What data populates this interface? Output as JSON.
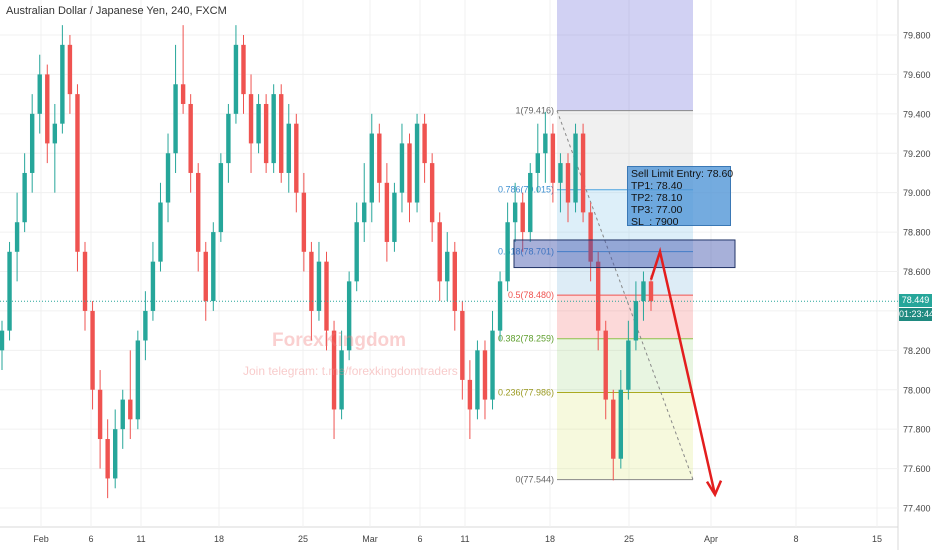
{
  "header": {
    "title": "Australian Dollar / Japanese Yen, 240, FXCM"
  },
  "watermark": {
    "brand": "ForexKingdom",
    "subtitle": "Join telegram: t.me/forexkingdomtraders"
  },
  "annotation": {
    "lines": [
      "Sell Limit Entry: 78.60",
      "TP1: 78.40",
      "TP2: 78.10",
      "TP3: 77.00",
      "SL  : 7900"
    ]
  },
  "price_tag": {
    "price": "78.449",
    "countdown": "01:23:44"
  },
  "colors": {
    "up": "#26a69a",
    "down": "#ef5350",
    "arrow": "#e31e1e",
    "current_line": "#26a69a"
  },
  "chart_data": {
    "type": "candlestick",
    "title": "Australian Dollar / Japanese Yen, 240, FXCM",
    "ylim": [
      77.3,
      80.0
    ],
    "y_ticks": [
      77.4,
      77.6,
      77.8,
      78.0,
      78.2,
      78.4,
      78.6,
      78.8,
      79.0,
      79.2,
      79.4,
      79.6,
      79.8
    ],
    "y_tick_labels": [
      "77.400",
      "77.600",
      "77.800",
      "78.000",
      "78.200",
      "78.400",
      "78.600",
      "78.800",
      "79.000",
      "79.200",
      "79.400",
      "79.600",
      "79.800"
    ],
    "x_labels": [
      "Feb",
      "6",
      "11",
      "18",
      "25",
      "Mar",
      "6",
      "11",
      "18",
      "25",
      "Apr",
      "8",
      "15"
    ],
    "current_price": 78.449,
    "fibonacci": [
      {
        "level": "1",
        "price": 79.416,
        "label": "1(79.416)"
      },
      {
        "level": "0.786",
        "price": 79.015,
        "label": "0.786(79.015)"
      },
      {
        "level": "0.618",
        "price": 78.701,
        "label": "0.618(78.701)"
      },
      {
        "level": "0.5",
        "price": 78.48,
        "label": "0.5(78.480)"
      },
      {
        "level": "0.382",
        "price": 78.259,
        "label": "0.382(78.259)"
      },
      {
        "level": "0.236",
        "price": 77.986,
        "label": "0.236(77.986)"
      },
      {
        "level": "0",
        "price": 77.544,
        "label": "0(77.544)"
      }
    ],
    "sell_zone": {
      "from": 78.62,
      "to": 78.76
    },
    "projection": {
      "from_price": 78.701,
      "to_price": 77.544
    },
    "candles": [
      {
        "o": 78.2,
        "h": 78.35,
        "l": 78.1,
        "c": 78.3
      },
      {
        "o": 78.3,
        "h": 78.75,
        "l": 78.25,
        "c": 78.7
      },
      {
        "o": 78.7,
        "h": 79.0,
        "l": 78.55,
        "c": 78.85
      },
      {
        "o": 78.85,
        "h": 79.2,
        "l": 78.8,
        "c": 79.1
      },
      {
        "o": 79.1,
        "h": 79.5,
        "l": 79.0,
        "c": 79.4
      },
      {
        "o": 79.4,
        "h": 79.7,
        "l": 79.3,
        "c": 79.6
      },
      {
        "o": 79.6,
        "h": 79.65,
        "l": 79.15,
        "c": 79.25
      },
      {
        "o": 79.25,
        "h": 79.45,
        "l": 79.0,
        "c": 79.35
      },
      {
        "o": 79.35,
        "h": 79.85,
        "l": 79.3,
        "c": 79.75
      },
      {
        "o": 79.75,
        "h": 79.8,
        "l": 79.4,
        "c": 79.5
      },
      {
        "o": 79.5,
        "h": 79.55,
        "l": 78.6,
        "c": 78.7
      },
      {
        "o": 78.7,
        "h": 78.75,
        "l": 78.3,
        "c": 78.4
      },
      {
        "o": 78.4,
        "h": 78.45,
        "l": 77.9,
        "c": 78.0
      },
      {
        "o": 78.0,
        "h": 78.1,
        "l": 77.6,
        "c": 77.75
      },
      {
        "o": 77.75,
        "h": 77.85,
        "l": 77.45,
        "c": 77.55
      },
      {
        "o": 77.55,
        "h": 77.9,
        "l": 77.5,
        "c": 77.8
      },
      {
        "o": 77.8,
        "h": 78.0,
        "l": 77.7,
        "c": 77.95
      },
      {
        "o": 77.95,
        "h": 78.2,
        "l": 77.75,
        "c": 77.85
      },
      {
        "o": 77.85,
        "h": 78.3,
        "l": 77.8,
        "c": 78.25
      },
      {
        "o": 78.25,
        "h": 78.5,
        "l": 78.15,
        "c": 78.4
      },
      {
        "o": 78.4,
        "h": 78.75,
        "l": 78.35,
        "c": 78.65
      },
      {
        "o": 78.65,
        "h": 79.05,
        "l": 78.6,
        "c": 78.95
      },
      {
        "o": 78.95,
        "h": 79.3,
        "l": 78.85,
        "c": 79.2
      },
      {
        "o": 79.2,
        "h": 79.75,
        "l": 79.1,
        "c": 79.55
      },
      {
        "o": 79.55,
        "h": 79.85,
        "l": 79.4,
        "c": 79.45
      },
      {
        "o": 79.45,
        "h": 79.5,
        "l": 79.0,
        "c": 79.1
      },
      {
        "o": 79.1,
        "h": 79.15,
        "l": 78.6,
        "c": 78.7
      },
      {
        "o": 78.7,
        "h": 78.75,
        "l": 78.35,
        "c": 78.45
      },
      {
        "o": 78.45,
        "h": 78.85,
        "l": 78.4,
        "c": 78.8
      },
      {
        "o": 78.8,
        "h": 79.2,
        "l": 78.75,
        "c": 79.15
      },
      {
        "o": 79.15,
        "h": 79.45,
        "l": 79.05,
        "c": 79.4
      },
      {
        "o": 79.4,
        "h": 79.85,
        "l": 79.35,
        "c": 79.75
      },
      {
        "o": 79.75,
        "h": 79.8,
        "l": 79.4,
        "c": 79.5
      },
      {
        "o": 79.5,
        "h": 79.6,
        "l": 79.1,
        "c": 79.25
      },
      {
        "o": 79.25,
        "h": 79.5,
        "l": 79.2,
        "c": 79.45
      },
      {
        "o": 79.45,
        "h": 79.5,
        "l": 79.1,
        "c": 79.15
      },
      {
        "o": 79.15,
        "h": 79.55,
        "l": 79.1,
        "c": 79.5
      },
      {
        "o": 79.5,
        "h": 79.55,
        "l": 79.05,
        "c": 79.1
      },
      {
        "o": 79.1,
        "h": 79.45,
        "l": 79.0,
        "c": 79.35
      },
      {
        "o": 79.35,
        "h": 79.4,
        "l": 78.9,
        "c": 79.0
      },
      {
        "o": 79.0,
        "h": 79.1,
        "l": 78.6,
        "c": 78.7
      },
      {
        "o": 78.7,
        "h": 78.75,
        "l": 78.25,
        "c": 78.4
      },
      {
        "o": 78.4,
        "h": 78.75,
        "l": 78.35,
        "c": 78.65
      },
      {
        "o": 78.65,
        "h": 78.7,
        "l": 78.2,
        "c": 78.3
      },
      {
        "o": 78.3,
        "h": 78.35,
        "l": 77.75,
        "c": 77.9
      },
      {
        "o": 77.9,
        "h": 78.3,
        "l": 77.85,
        "c": 78.2
      },
      {
        "o": 78.2,
        "h": 78.6,
        "l": 78.15,
        "c": 78.55
      },
      {
        "o": 78.55,
        "h": 78.95,
        "l": 78.5,
        "c": 78.85
      },
      {
        "o": 78.85,
        "h": 79.15,
        "l": 78.75,
        "c": 78.95
      },
      {
        "o": 78.95,
        "h": 79.4,
        "l": 78.85,
        "c": 79.3
      },
      {
        "o": 79.3,
        "h": 79.35,
        "l": 78.95,
        "c": 79.05
      },
      {
        "o": 79.05,
        "h": 79.15,
        "l": 78.65,
        "c": 78.75
      },
      {
        "o": 78.75,
        "h": 79.05,
        "l": 78.7,
        "c": 79.0
      },
      {
        "o": 79.0,
        "h": 79.35,
        "l": 78.9,
        "c": 79.25
      },
      {
        "o": 79.25,
        "h": 79.3,
        "l": 78.85,
        "c": 78.95
      },
      {
        "o": 78.95,
        "h": 79.4,
        "l": 78.9,
        "c": 79.35
      },
      {
        "o": 79.35,
        "h": 79.4,
        "l": 79.05,
        "c": 79.15
      },
      {
        "o": 79.15,
        "h": 79.2,
        "l": 78.75,
        "c": 78.85
      },
      {
        "o": 78.85,
        "h": 78.9,
        "l": 78.45,
        "c": 78.55
      },
      {
        "o": 78.55,
        "h": 78.8,
        "l": 78.45,
        "c": 78.7
      },
      {
        "o": 78.7,
        "h": 78.75,
        "l": 78.3,
        "c": 78.4
      },
      {
        "o": 78.4,
        "h": 78.45,
        "l": 77.95,
        "c": 78.05
      },
      {
        "o": 78.05,
        "h": 78.15,
        "l": 77.75,
        "c": 77.9
      },
      {
        "o": 77.9,
        "h": 78.25,
        "l": 77.85,
        "c": 78.2
      },
      {
        "o": 78.2,
        "h": 78.25,
        "l": 77.85,
        "c": 77.95
      },
      {
        "o": 77.95,
        "h": 78.4,
        "l": 77.9,
        "c": 78.3
      },
      {
        "o": 78.3,
        "h": 78.6,
        "l": 78.25,
        "c": 78.55
      },
      {
        "o": 78.55,
        "h": 78.95,
        "l": 78.5,
        "c": 78.85
      },
      {
        "o": 78.85,
        "h": 79.05,
        "l": 78.75,
        "c": 78.95
      },
      {
        "o": 78.95,
        "h": 79.0,
        "l": 78.7,
        "c": 78.8
      },
      {
        "o": 78.8,
        "h": 79.15,
        "l": 78.75,
        "c": 79.1
      },
      {
        "o": 79.1,
        "h": 79.35,
        "l": 79.0,
        "c": 79.2
      },
      {
        "o": 79.2,
        "h": 79.41,
        "l": 79.05,
        "c": 79.3
      },
      {
        "o": 79.3,
        "h": 79.35,
        "l": 78.95,
        "c": 79.05
      },
      {
        "o": 79.05,
        "h": 79.2,
        "l": 78.9,
        "c": 79.15
      },
      {
        "o": 79.15,
        "h": 79.2,
        "l": 78.85,
        "c": 78.95
      },
      {
        "o": 78.95,
        "h": 79.35,
        "l": 78.9,
        "c": 79.3
      },
      {
        "o": 79.3,
        "h": 79.35,
        "l": 78.85,
        "c": 78.9
      },
      {
        "o": 78.9,
        "h": 78.95,
        "l": 78.55,
        "c": 78.65
      },
      {
        "o": 78.65,
        "h": 78.7,
        "l": 78.2,
        "c": 78.3
      },
      {
        "o": 78.3,
        "h": 78.35,
        "l": 77.85,
        "c": 77.95
      },
      {
        "o": 77.95,
        "h": 78.0,
        "l": 77.54,
        "c": 77.65
      },
      {
        "o": 77.65,
        "h": 78.1,
        "l": 77.6,
        "c": 78.0
      },
      {
        "o": 78.0,
        "h": 78.35,
        "l": 77.95,
        "c": 78.25
      },
      {
        "o": 78.25,
        "h": 78.55,
        "l": 78.2,
        "c": 78.45
      },
      {
        "o": 78.45,
        "h": 78.6,
        "l": 78.35,
        "c": 78.55
      },
      {
        "o": 78.55,
        "h": 78.58,
        "l": 78.4,
        "c": 78.449
      }
    ]
  }
}
